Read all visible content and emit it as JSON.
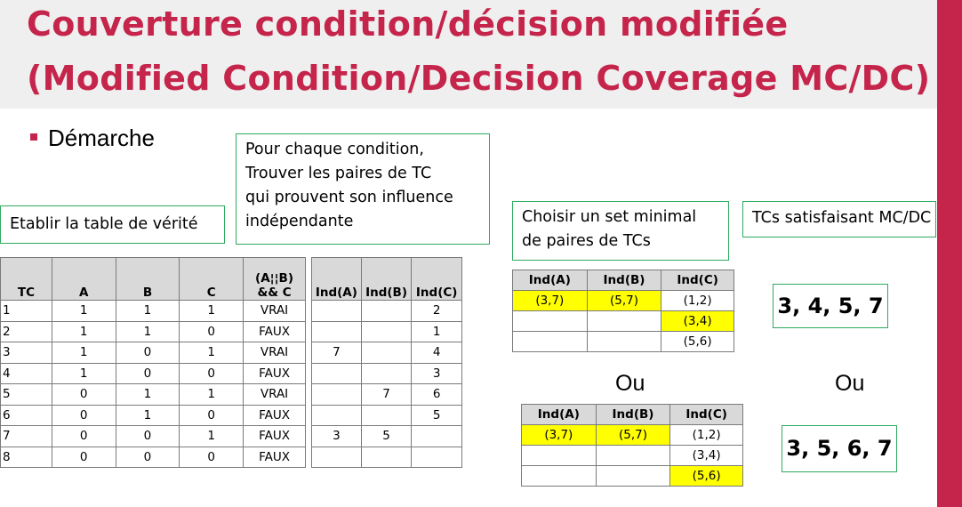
{
  "title": {
    "line1": "Couverture condition/décision modifiée",
    "line2": "(Modified Condition/Decision Coverage MC/DC)"
  },
  "bullet": "Démarche",
  "boxes": {
    "establish": "Etablir la table de vérité",
    "find_pairs": [
      "Pour chaque condition,",
      "Trouver les paires de TC",
      "qui prouvent son influence",
      "indépendante"
    ],
    "choose_set": [
      "Choisir un set minimal",
      "de paires de TCs"
    ],
    "satisfying": "TCs satisfaisant MC/DC"
  },
  "truth_table": {
    "headers": [
      "TC",
      "A",
      "B",
      "C",
      "(A¦¦B) && C"
    ],
    "rows": [
      [
        "1",
        "1",
        "1",
        "1",
        "VRAI"
      ],
      [
        "2",
        "1",
        "1",
        "0",
        "FAUX"
      ],
      [
        "3",
        "1",
        "0",
        "1",
        "VRAI"
      ],
      [
        "4",
        "1",
        "0",
        "0",
        "FAUX"
      ],
      [
        "5",
        "0",
        "1",
        "1",
        "VRAI"
      ],
      [
        "6",
        "0",
        "1",
        "0",
        "FAUX"
      ],
      [
        "7",
        "0",
        "0",
        "1",
        "FAUX"
      ],
      [
        "8",
        "0",
        "0",
        "0",
        "FAUX"
      ]
    ]
  },
  "independence_table": {
    "headers": [
      "Ind(A)",
      "Ind(B)",
      "Ind(C)"
    ],
    "rows": [
      [
        "",
        "",
        "2"
      ],
      [
        "",
        "",
        "1"
      ],
      [
        "7",
        "",
        "4"
      ],
      [
        "",
        "",
        "3"
      ],
      [
        "",
        "7",
        "6"
      ],
      [
        "",
        "",
        "5"
      ],
      [
        "3",
        "5",
        ""
      ],
      [
        "",
        "",
        ""
      ]
    ]
  },
  "set1": {
    "headers": [
      "Ind(A)",
      "Ind(B)",
      "Ind(C)"
    ],
    "rows": [
      [
        "(3,7)",
        "(5,7)",
        "(1,2)"
      ],
      [
        "",
        "",
        "(3,4)"
      ],
      [
        "",
        "",
        "(5,6)"
      ]
    ],
    "highlight_color": "#ffff00"
  },
  "set2": {
    "headers": [
      "Ind(A)",
      "Ind(B)",
      "Ind(C)"
    ],
    "rows": [
      [
        "(3,7)",
        "(5,7)",
        "(1,2)"
      ],
      [
        "",
        "",
        "(3,4)"
      ],
      [
        "",
        "",
        "(5,6)"
      ]
    ],
    "highlight_color": "#ffff00"
  },
  "ou": "Ou",
  "answers": [
    "3, 4, 5, 7",
    "3, 5, 6, 7"
  ],
  "colors": {
    "title": "#c5244b",
    "accent": "#c5244b",
    "box_border": "#2eaa5e",
    "header_bg": "#efefef",
    "table_header_bg": "#d9d9d9",
    "highlight": "#ffff00"
  }
}
